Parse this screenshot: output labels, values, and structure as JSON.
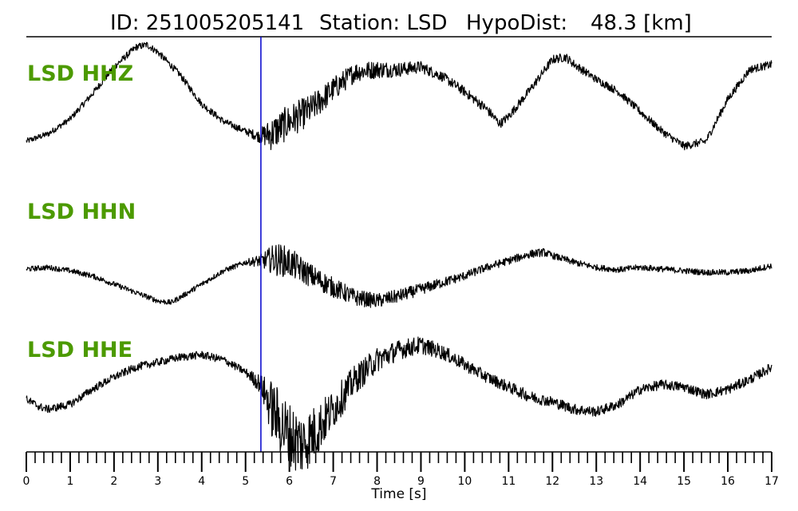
{
  "header": {
    "id_text": "ID: 251005205141",
    "station_text": "Station: LSD",
    "hypodist_text": "HypoDist:",
    "hypodist_value": "48.3 [km]"
  },
  "colors": {
    "label": "#4c9a00",
    "pick_line": "#0000cc",
    "trace": "#000000"
  },
  "chart_data": {
    "type": "line",
    "xlabel": "Time [s]",
    "xlim": [
      0,
      17
    ],
    "x_ticks": [
      "0",
      "1",
      "2",
      "3",
      "4",
      "5",
      "6",
      "7",
      "8",
      "9",
      "10",
      "11",
      "12",
      "13",
      "14",
      "15",
      "16",
      "17"
    ],
    "minor_tick_step": 0.2,
    "pick_time": 5.35,
    "grid": false,
    "series": [
      {
        "name": "LSD HHZ",
        "t": [
          0.0,
          0.5,
          1.0,
          1.5,
          2.0,
          2.5,
          2.75,
          3.0,
          3.5,
          4.0,
          4.5,
          5.0,
          5.3,
          5.6,
          6.0,
          6.5,
          7.0,
          7.5,
          8.0,
          8.5,
          9.0,
          9.5,
          10.0,
          10.5,
          10.8,
          11.0,
          11.5,
          12.0,
          12.3,
          12.5,
          13.0,
          13.5,
          14.0,
          14.5,
          15.0,
          15.5,
          16.0,
          16.5,
          17.0
        ],
        "v": [
          -0.95,
          -0.8,
          -0.5,
          0.0,
          0.55,
          0.95,
          1.0,
          0.85,
          0.4,
          -0.2,
          -0.55,
          -0.75,
          -0.85,
          -0.8,
          -0.55,
          -0.3,
          0.1,
          0.45,
          0.5,
          0.5,
          0.55,
          0.35,
          0.05,
          -0.3,
          -0.6,
          -0.45,
          0.1,
          0.7,
          0.75,
          0.6,
          0.3,
          0.05,
          -0.35,
          -0.75,
          -1.05,
          -0.95,
          -0.1,
          0.5,
          0.6
        ],
        "noise": [
          0.06,
          0.06,
          0.06,
          0.07,
          0.07,
          0.07,
          0.07,
          0.07,
          0.07,
          0.07,
          0.07,
          0.07,
          0.12,
          0.35,
          0.35,
          0.3,
          0.25,
          0.2,
          0.18,
          0.15,
          0.12,
          0.1,
          0.1,
          0.1,
          0.09,
          0.09,
          0.09,
          0.09,
          0.09,
          0.09,
          0.08,
          0.08,
          0.08,
          0.08,
          0.08,
          0.08,
          0.08,
          0.08,
          0.08
        ]
      },
      {
        "name": "LSD HHN",
        "t": [
          0.0,
          0.5,
          1.0,
          1.5,
          2.0,
          2.5,
          3.0,
          3.3,
          3.5,
          4.0,
          4.5,
          5.0,
          5.35,
          5.7,
          6.0,
          6.5,
          7.0,
          7.5,
          8.0,
          8.5,
          9.0,
          9.5,
          10.0,
          10.5,
          11.0,
          11.5,
          11.8,
          12.0,
          12.5,
          13.0,
          13.5,
          14.0,
          14.5,
          15.0,
          15.5,
          16.0,
          16.5,
          17.0
        ],
        "v": [
          0.0,
          0.05,
          -0.05,
          -0.2,
          -0.45,
          -0.7,
          -0.95,
          -1.0,
          -0.85,
          -0.45,
          -0.05,
          0.2,
          0.25,
          0.3,
          0.2,
          -0.2,
          -0.55,
          -0.85,
          -0.95,
          -0.8,
          -0.6,
          -0.4,
          -0.2,
          0.05,
          0.25,
          0.45,
          0.5,
          0.4,
          0.2,
          0.05,
          -0.02,
          0.05,
          0.0,
          -0.05,
          -0.1,
          -0.1,
          -0.05,
          0.1
        ],
        "noise": [
          0.08,
          0.08,
          0.08,
          0.08,
          0.08,
          0.08,
          0.08,
          0.08,
          0.08,
          0.08,
          0.08,
          0.08,
          0.2,
          0.5,
          0.45,
          0.35,
          0.3,
          0.25,
          0.22,
          0.2,
          0.17,
          0.15,
          0.13,
          0.12,
          0.12,
          0.12,
          0.12,
          0.1,
          0.1,
          0.09,
          0.09,
          0.09,
          0.09,
          0.09,
          0.09,
          0.09,
          0.09,
          0.09
        ]
      },
      {
        "name": "LSD HHE",
        "t": [
          0.0,
          0.3,
          0.5,
          1.0,
          1.5,
          2.0,
          2.5,
          3.0,
          3.5,
          4.0,
          4.5,
          5.0,
          5.35,
          5.6,
          6.0,
          6.3,
          6.6,
          7.0,
          7.5,
          8.0,
          8.5,
          9.0,
          9.5,
          10.0,
          10.5,
          11.0,
          11.5,
          12.0,
          12.5,
          13.0,
          13.5,
          14.0,
          14.5,
          15.0,
          15.5,
          16.0,
          16.5,
          17.0
        ],
        "v": [
          -0.1,
          -0.25,
          -0.3,
          -0.2,
          0.1,
          0.35,
          0.55,
          0.65,
          0.75,
          0.8,
          0.7,
          0.45,
          0.2,
          -0.3,
          -0.85,
          -1.0,
          -0.75,
          -0.3,
          0.3,
          0.7,
          0.9,
          1.0,
          0.85,
          0.6,
          0.35,
          0.15,
          -0.05,
          -0.15,
          -0.3,
          -0.35,
          -0.2,
          0.1,
          0.2,
          0.15,
          0.0,
          0.1,
          0.3,
          0.55
        ],
        "noise": [
          0.08,
          0.08,
          0.08,
          0.08,
          0.08,
          0.08,
          0.08,
          0.08,
          0.08,
          0.08,
          0.08,
          0.08,
          0.2,
          0.6,
          0.7,
          0.65,
          0.55,
          0.4,
          0.3,
          0.25,
          0.2,
          0.18,
          0.15,
          0.13,
          0.12,
          0.12,
          0.12,
          0.11,
          0.11,
          0.1,
          0.1,
          0.1,
          0.1,
          0.1,
          0.1,
          0.1,
          0.1,
          0.1
        ]
      }
    ]
  }
}
